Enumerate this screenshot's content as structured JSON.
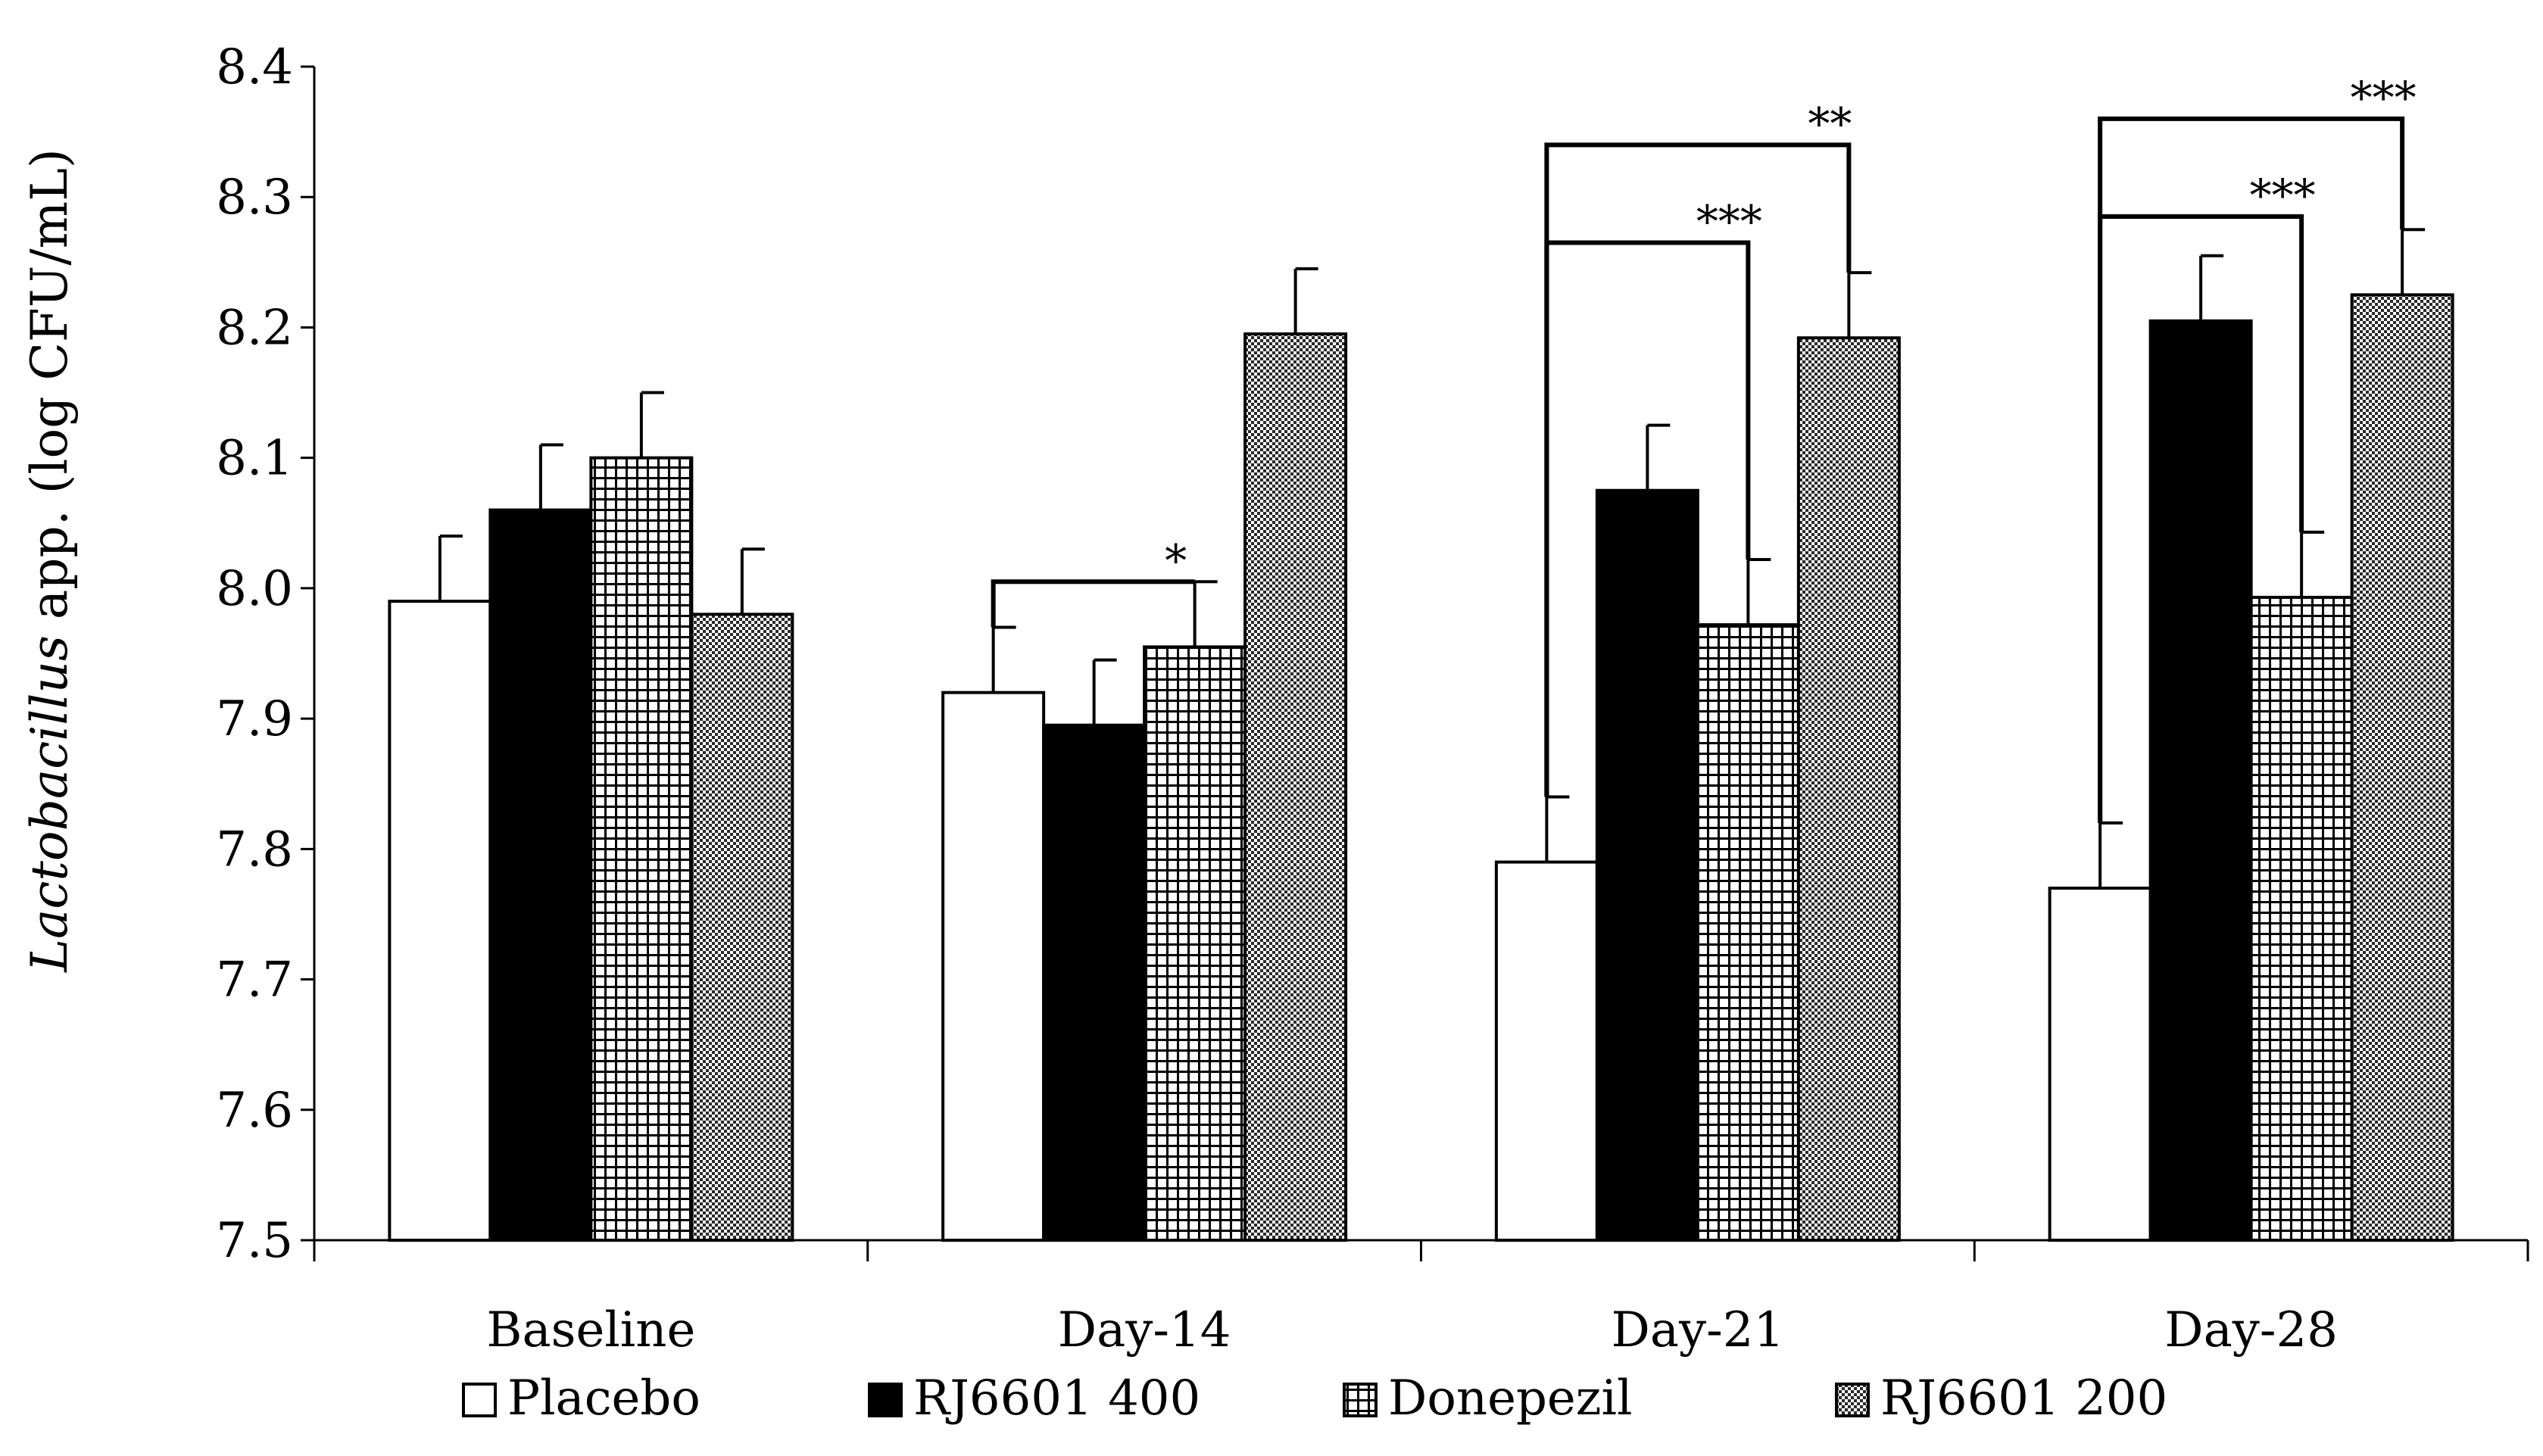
{
  "chart_data": {
    "type": "bar",
    "title": "",
    "xlabel": "",
    "ylabel": {
      "italic": "Lactobacillus",
      "rest": " app. (log CFU/mL)"
    },
    "ylim": [
      7.5,
      8.4
    ],
    "yticks": [
      "7.5",
      "7.6",
      "7.7",
      "7.8",
      "7.9",
      "8.0",
      "8.1",
      "8.2",
      "8.3",
      "8.4"
    ],
    "grid": false,
    "legend_position": "bottom",
    "categories": [
      "Baseline",
      "Day-14",
      "Day-21",
      "Day-28"
    ],
    "series": [
      {
        "name": "Placebo",
        "pattern": "white",
        "values": [
          7.99,
          7.92,
          7.79,
          7.77
        ],
        "errors": [
          0.05,
          0.05,
          0.05,
          0.05
        ]
      },
      {
        "name": "RJ6601 400",
        "pattern": "black",
        "values": [
          8.06,
          7.895,
          8.075,
          8.205
        ],
        "errors": [
          0.05,
          0.05,
          0.05,
          0.05
        ]
      },
      {
        "name": "Donepezil",
        "pattern": "grid",
        "values": [
          8.1,
          7.955,
          7.972,
          7.993
        ],
        "errors": [
          0.05,
          0.05,
          0.05,
          0.05
        ]
      },
      {
        "name": "RJ6601 200",
        "pattern": "checker",
        "values": [
          7.98,
          8.195,
          8.192,
          8.225
        ],
        "errors": [
          0.05,
          0.05,
          0.05,
          0.05
        ]
      }
    ],
    "significance": [
      {
        "category": 1,
        "from": 0,
        "to": 2,
        "label": "*"
      },
      {
        "category": 2,
        "from": 0,
        "to": 2,
        "label": "***"
      },
      {
        "category": 2,
        "from": 0,
        "to": 3,
        "label": "**"
      },
      {
        "category": 3,
        "from": 0,
        "to": 2,
        "label": "***"
      },
      {
        "category": 3,
        "from": 0,
        "to": 3,
        "label": "***"
      }
    ],
    "bracket_levels": [
      {
        "category": 1,
        "from": 0,
        "to": 2,
        "level": 8.005
      },
      {
        "category": 2,
        "from": 0,
        "to": 2,
        "level": 8.265
      },
      {
        "category": 2,
        "from": 0,
        "to": 3,
        "level": 8.34
      },
      {
        "category": 3,
        "from": 0,
        "to": 2,
        "level": 8.285
      },
      {
        "category": 3,
        "from": 0,
        "to": 3,
        "level": 8.36
      }
    ]
  }
}
